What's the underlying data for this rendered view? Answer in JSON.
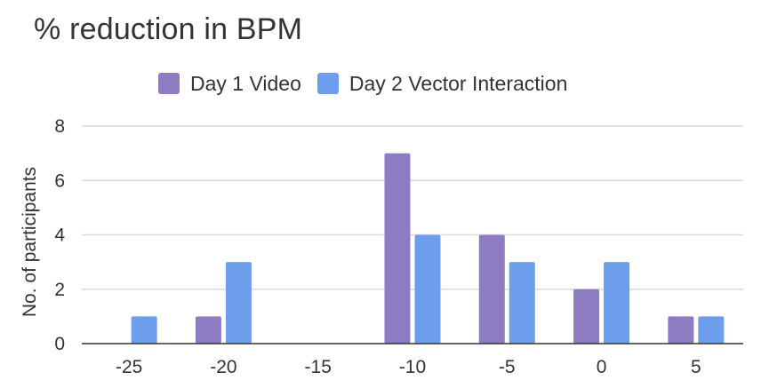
{
  "chart_data": {
    "type": "bar",
    "title": "% reduction in BPM",
    "xlabel": "",
    "ylabel": "No. of participants",
    "categories": [
      "-25",
      "-20",
      "-15",
      "-10",
      "-5",
      "0",
      "5"
    ],
    "series": [
      {
        "name": "Day 1 Video",
        "color": "#8e7cc3",
        "values": [
          0,
          1,
          0,
          7,
          4,
          2,
          1
        ]
      },
      {
        "name": "Day 2 Vector Interaction",
        "color": "#6d9eeb",
        "values": [
          1,
          3,
          0,
          4,
          3,
          3,
          1
        ]
      }
    ],
    "yticks": [
      "0",
      "2",
      "4",
      "6",
      "8"
    ],
    "ylim": [
      0,
      8
    ],
    "grid": true,
    "legend_position": "top"
  }
}
